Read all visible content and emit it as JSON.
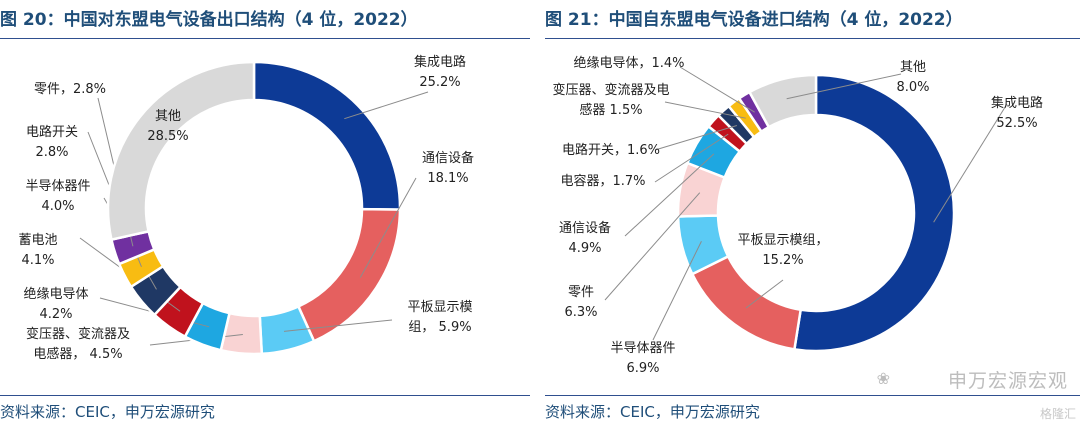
{
  "left": {
    "title": "图 20：中国对东盟电气设备出口结构（4 位，2022）",
    "source": "资料来源：CEIC，申万宏源研究"
  },
  "right": {
    "title": "图 21：中国自东盟电气设备进口结构（4 位，2022）",
    "source": "资料来源：CEIC，申万宏源研究"
  },
  "watermark": "申万宏源宏观",
  "watermark_icon": "wechat-icon",
  "corner_logo": "格隆汇",
  "chart_data": [
    {
      "type": "pie",
      "donut": true,
      "title": "图 20：中国对东盟电气设备出口结构（4 位，2022）",
      "slices": [
        {
          "label": [
            "集成电路",
            "25.2%"
          ],
          "value": 25.2,
          "color": "#0d3a96"
        },
        {
          "label": [
            "通信设备",
            "18.1%"
          ],
          "value": 18.1,
          "color": "#e5605f"
        },
        {
          "label": [
            "平板显示模",
            "组， 5.9%"
          ],
          "value": 5.9,
          "color": "#5bcbf5"
        },
        {
          "label": [
            "变压器、变流器及",
            "电感器， 4.5%"
          ],
          "value": 4.5,
          "color": "#f9d3d3"
        },
        {
          "label": [
            "绝缘电导体",
            "4.2%"
          ],
          "value": 4.2,
          "color": "#1ea7e1"
        },
        {
          "label": [
            "蓄电池",
            "4.1%"
          ],
          "value": 4.1,
          "color": "#c0121d"
        },
        {
          "label": [
            "半导体器件",
            "4.0%"
          ],
          "value": 4.0,
          "color": "#1f3864"
        },
        {
          "label": [
            "电路开关",
            "2.8%"
          ],
          "value": 2.8,
          "color": "#f8bc12"
        },
        {
          "label": [
            "零件，2.8%"
          ],
          "value": 2.8,
          "color": "#7030a0"
        },
        {
          "label": [
            "其他",
            "28.5%"
          ],
          "value": 28.5,
          "color": "#d9d9d9"
        }
      ]
    },
    {
      "type": "pie",
      "donut": true,
      "title": "图 21：中国自东盟电气设备进口结构（4 位，2022）",
      "slices": [
        {
          "label": [
            "集成电路",
            "52.5%"
          ],
          "value": 52.5,
          "color": "#0d3a96"
        },
        {
          "label": [
            "平板显示模组，",
            "15.2%"
          ],
          "value": 15.2,
          "color": "#e5605f"
        },
        {
          "label": [
            "半导体器件",
            "6.9%"
          ],
          "value": 6.9,
          "color": "#5bcbf5"
        },
        {
          "label": [
            "零件",
            "6.3%"
          ],
          "value": 6.3,
          "color": "#f9d3d3"
        },
        {
          "label": [
            "通信设备",
            "4.9%"
          ],
          "value": 4.9,
          "color": "#1ea7e1"
        },
        {
          "label": [
            "电容器，1.7%"
          ],
          "value": 1.7,
          "color": "#c0121d"
        },
        {
          "label": [
            "电路开关，1.6%"
          ],
          "value": 1.6,
          "color": "#1f3864"
        },
        {
          "label": [
            "变压器、变流器及电",
            "感器 1.5%"
          ],
          "value": 1.5,
          "color": "#f8bc12"
        },
        {
          "label": [
            "绝缘电导体，1.4%"
          ],
          "value": 1.4,
          "color": "#7030a0"
        },
        {
          "label": [
            "其他",
            "8.0%"
          ],
          "value": 8.0,
          "color": "#d9d9d9"
        }
      ]
    }
  ]
}
